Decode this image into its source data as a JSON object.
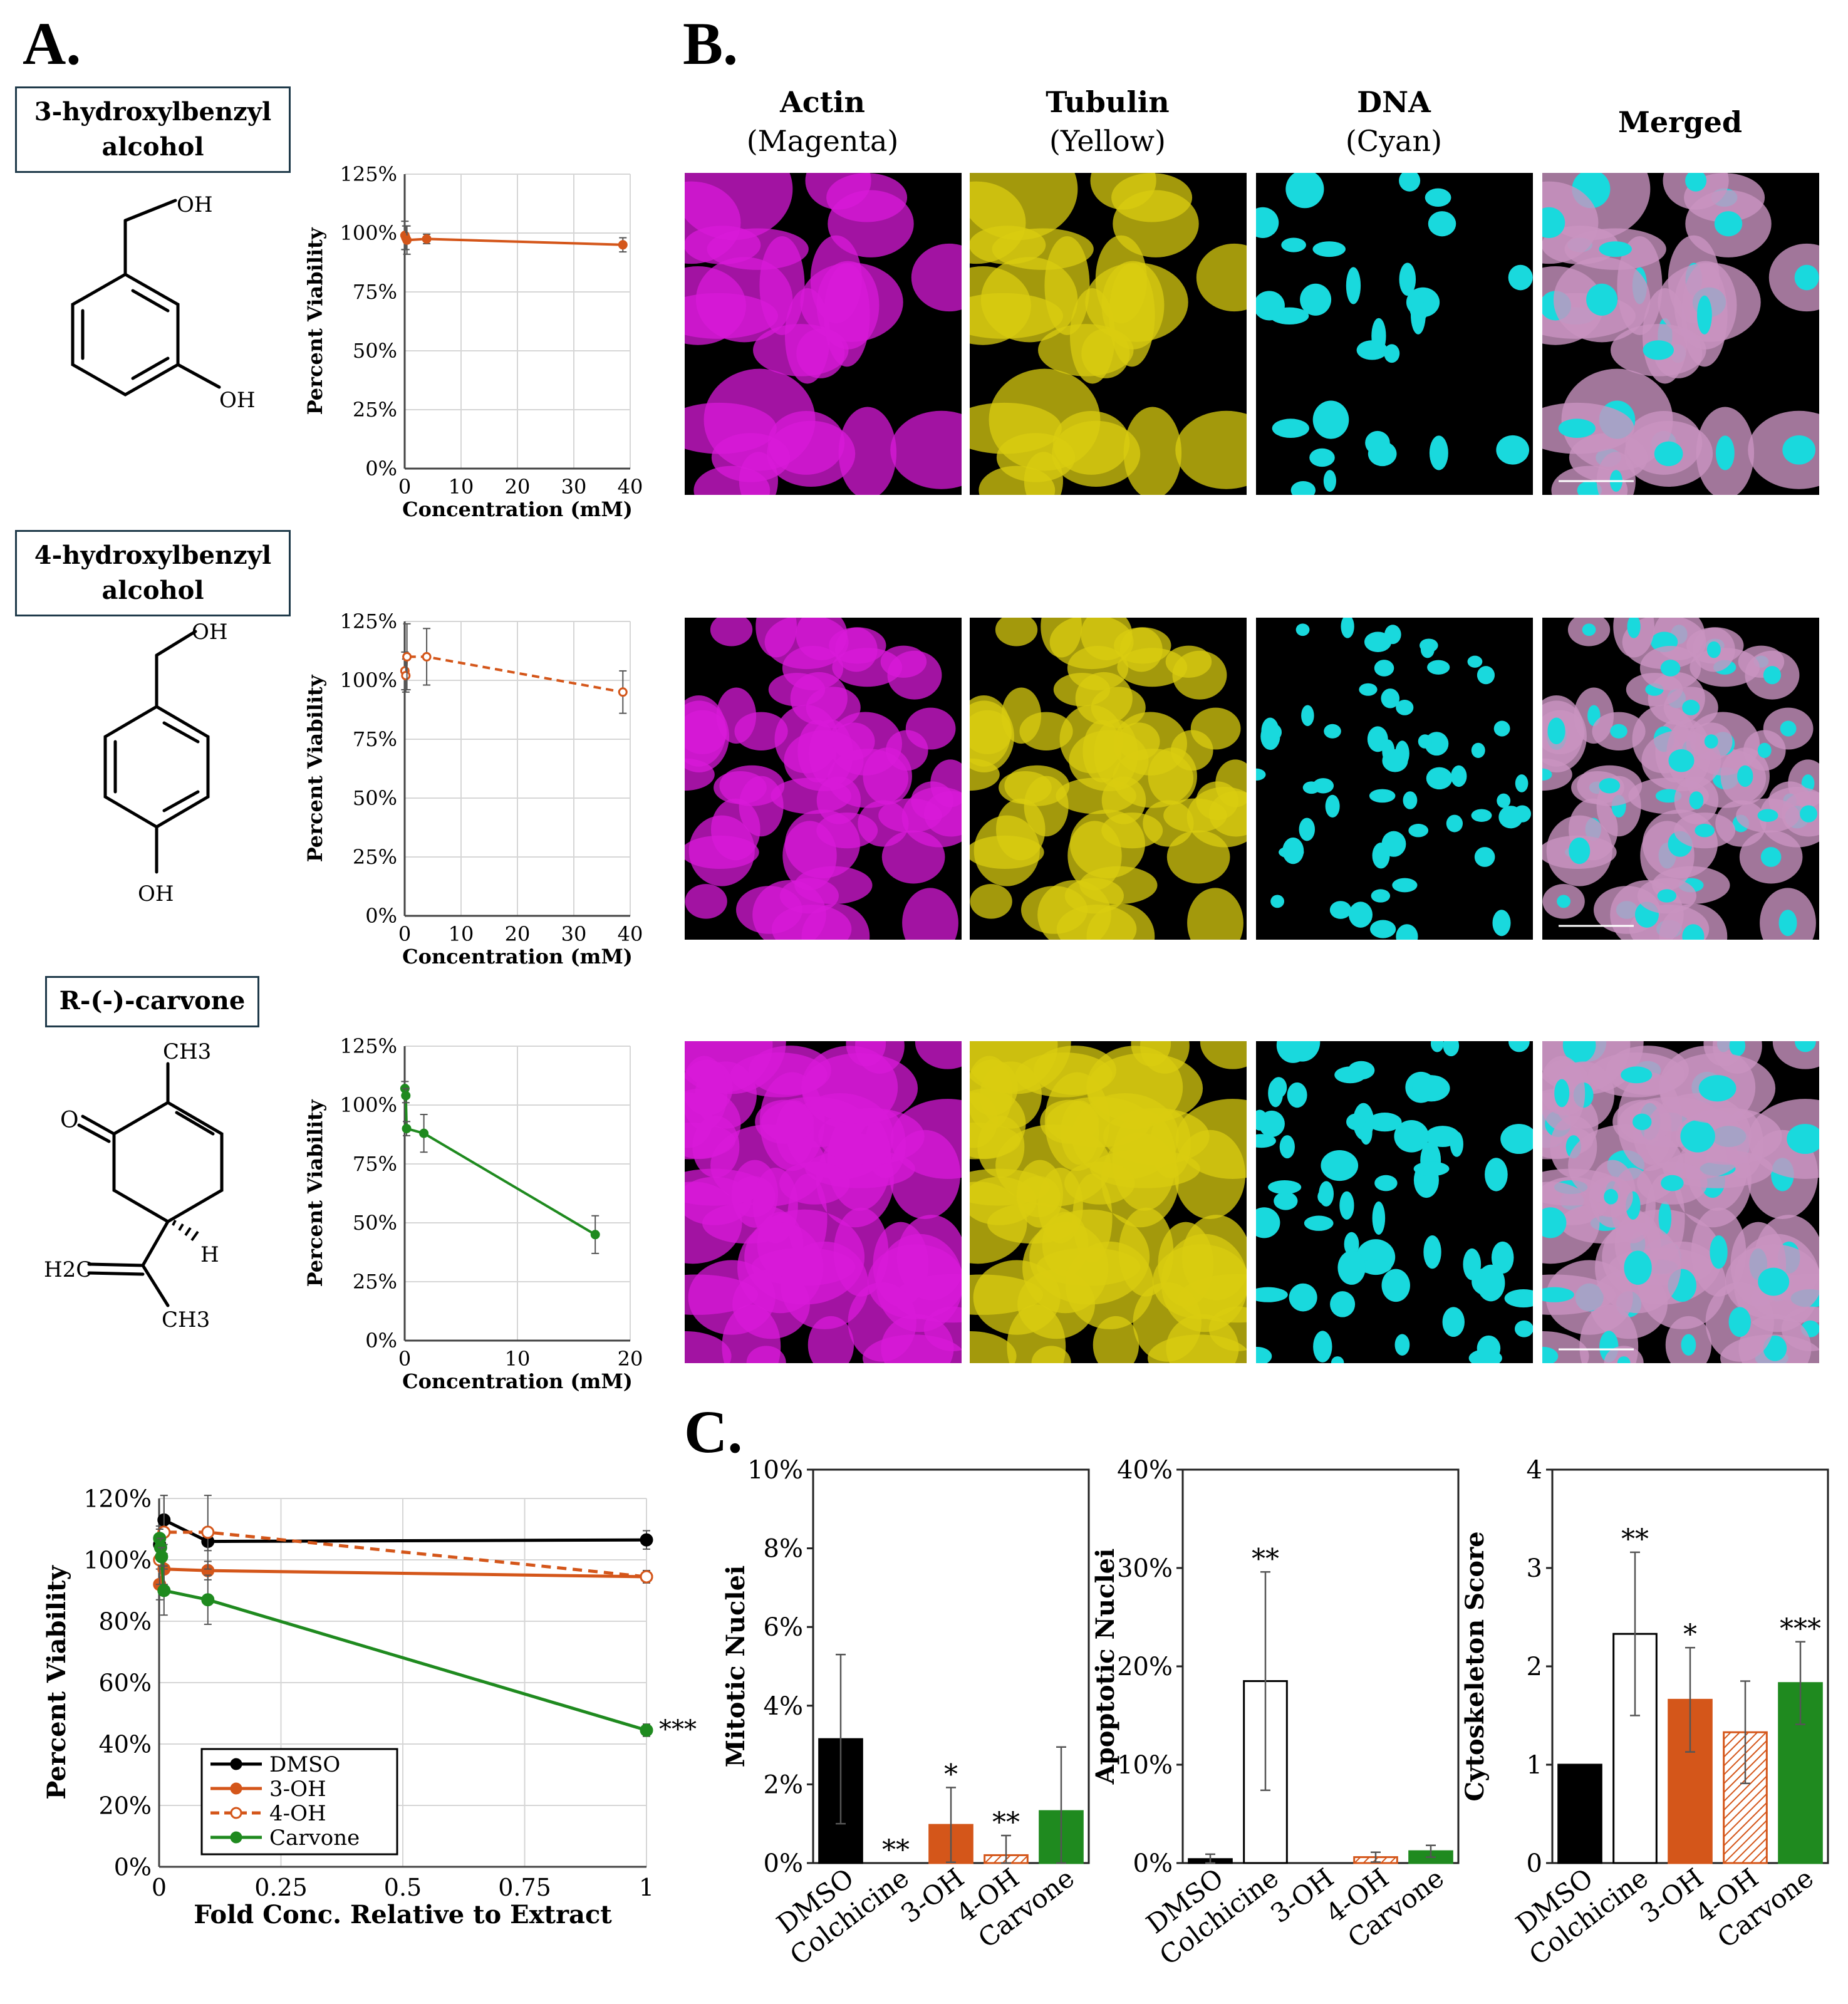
{
  "panel_labels": {
    "a": "A.",
    "b": "B.",
    "c": "C."
  },
  "compounds": [
    {
      "name_line1": "3-hydroxylbenzyl",
      "name_line2": "alcohol"
    },
    {
      "name_line1": "4-hydroxylbenzyl",
      "name_line2": "alcohol"
    },
    {
      "name_line1": "R-(-)-carvone",
      "name_line2": ""
    }
  ],
  "structure_labels": {
    "s1_oh_top": "OH",
    "s1_oh_bottom": "OH",
    "s2_oh_top": "OH",
    "s2_oh_bottom": "OH",
    "s3_ch3_top": "CH3",
    "s3_o": "O",
    "s3_h": "H",
    "s3_h2c": "H2C",
    "s3_ch3_bottom": "CH3"
  },
  "microscopy": {
    "headers": [
      {
        "line1": "Actin",
        "line2": "(Magenta)"
      },
      {
        "line1": "Tubulin",
        "line2": "(Yellow)"
      },
      {
        "line1": "DNA",
        "line2": "(Cyan)"
      },
      {
        "line1": "Merged",
        "line2": ""
      }
    ],
    "channel_colors": [
      "#d81ad8",
      "#d9cc10",
      "#19d9dd",
      "#c994c0"
    ]
  },
  "chart_data": [
    {
      "id": "viability-3oh",
      "type": "line",
      "xlabel": "Concentration (mM)",
      "ylabel": "Percent Viability",
      "xlim": [
        0,
        40
      ],
      "ylim": [
        0,
        125
      ],
      "x_ticks": [
        "0",
        "10",
        "20",
        "30",
        "40"
      ],
      "y_ticks": [
        "0%",
        "25%",
        "50%",
        "75%",
        "100%",
        "125%"
      ],
      "grid": true,
      "series": [
        {
          "x": [
            0.04,
            0.2,
            0.4,
            3.9,
            38.7
          ],
          "y": [
            99,
            98,
            97,
            97.5,
            95
          ],
          "err": [
            6,
            5,
            6,
            2,
            3
          ],
          "color": "#d4561a",
          "dashed": false,
          "open": false
        }
      ]
    },
    {
      "id": "viability-4oh",
      "type": "line",
      "xlabel": "Concentration (mM)",
      "ylabel": "Percent Viability",
      "xlim": [
        0,
        40
      ],
      "ylim": [
        0,
        125
      ],
      "x_ticks": [
        "0",
        "10",
        "20",
        "30",
        "40"
      ],
      "y_ticks": [
        "0%",
        "25%",
        "50%",
        "75%",
        "100%",
        "125%"
      ],
      "grid": true,
      "series": [
        {
          "x": [
            0.04,
            0.2,
            0.4,
            3.9,
            38.7
          ],
          "y": [
            104,
            102,
            110,
            110,
            95
          ],
          "err": [
            8,
            7,
            14,
            12,
            9
          ],
          "color": "#d4561a",
          "dashed": true,
          "open": true
        }
      ]
    },
    {
      "id": "viability-carvone",
      "type": "line",
      "xlabel": "Concentration (mM)",
      "ylabel": "Percent Viability",
      "xlim": [
        0,
        20
      ],
      "ylim": [
        0,
        125
      ],
      "x_ticks": [
        "0",
        "10",
        "20"
      ],
      "y_ticks": [
        "0%",
        "25%",
        "50%",
        "75%",
        "100%",
        "125%"
      ],
      "grid": true,
      "series": [
        {
          "x": [
            0.02,
            0.1,
            0.17,
            1.7,
            16.9
          ],
          "y": [
            107,
            104,
            90,
            88,
            45
          ],
          "err": [
            3,
            3,
            3,
            8,
            8
          ],
          "color": "#1f8a1f",
          "dashed": false,
          "open": false
        }
      ]
    },
    {
      "id": "viability-fold",
      "type": "line",
      "xlabel": "Fold Conc. Relative to Extract",
      "ylabel": "Percent Viability",
      "xlim": [
        0,
        1
      ],
      "ylim": [
        0,
        120
      ],
      "x_ticks": [
        "0",
        "0.25",
        "0.5",
        "0.75",
        "1"
      ],
      "y_ticks": [
        "0%",
        "20%",
        "40%",
        "60%",
        "80%",
        "100%",
        "120%"
      ],
      "grid": true,
      "legend_position": "bottom-left",
      "annotation": "***",
      "series": [
        {
          "name": "DMSO",
          "x": [
            0.001,
            0.01,
            0.1,
            1
          ],
          "y": [
            105,
            113,
            106,
            106.5
          ],
          "err": [
            6,
            8,
            3,
            3
          ],
          "color": "#000000",
          "dashed": false,
          "open": false
        },
        {
          "name": "3-OH",
          "x": [
            0.001,
            0.01,
            0.1,
            1
          ],
          "y": [
            92,
            97,
            96.5,
            94.5
          ],
          "err": [
            5,
            5,
            3,
            2
          ],
          "color": "#d4561a",
          "dashed": false,
          "open": false
        },
        {
          "name": "4-OH",
          "x": [
            0.001,
            0.01,
            0.1,
            1
          ],
          "y": [
            100,
            109,
            109,
            94.5
          ],
          "err": [
            8,
            12,
            12,
            2
          ],
          "color": "#d4561a",
          "dashed": true,
          "open": true
        },
        {
          "name": "Carvone",
          "x": [
            0.001,
            0.003,
            0.005,
            0.01,
            0.1,
            1
          ],
          "y": [
            107,
            104,
            101,
            90,
            87,
            44.5
          ],
          "err": [
            3,
            3,
            3,
            8,
            8,
            2
          ],
          "color": "#1f8a1f",
          "dashed": false,
          "open": false
        }
      ]
    },
    {
      "id": "mitotic-bars",
      "type": "bar",
      "ylabel": "Mitotic Nuclei",
      "categories": [
        "DMSO",
        "Colchicine",
        "3-OH",
        "4-OH",
        "Carvone"
      ],
      "values": [
        3.15,
        0,
        0.97,
        0.2,
        1.32
      ],
      "errors": [
        2.15,
        0,
        0.95,
        0.5,
        1.63
      ],
      "significance": [
        "",
        "**",
        "*",
        "**",
        ""
      ],
      "ylim": [
        0,
        10
      ],
      "y_ticks": [
        "0%",
        "2%",
        "4%",
        "6%",
        "8%",
        "10%"
      ],
      "colors": [
        "#000000",
        "#ffffff",
        "#d4561a",
        "hatch",
        "#1f8a1f"
      ]
    },
    {
      "id": "apoptotic-bars",
      "type": "bar",
      "ylabel": "Apoptotic Nuclei",
      "categories": [
        "DMSO",
        "Colchicine",
        "3-OH",
        "4-OH",
        "Carvone"
      ],
      "values": [
        0.4,
        18.5,
        0,
        0.6,
        1.2
      ],
      "errors": [
        0.5,
        11.1,
        0,
        0.5,
        0.6
      ],
      "significance": [
        "",
        "**",
        "",
        "",
        ""
      ],
      "ylim": [
        0,
        40
      ],
      "y_ticks": [
        "0%",
        "10%",
        "20%",
        "30%",
        "40%"
      ],
      "colors": [
        "#000000",
        "#ffffff",
        "#d4561a",
        "hatch",
        "#1f8a1f"
      ]
    },
    {
      "id": "cytoskeleton-bars",
      "type": "bar",
      "ylabel": "Cytoskeleton Score",
      "categories": [
        "DMSO",
        "Colchicine",
        "3-OH",
        "4-OH",
        "Carvone"
      ],
      "values": [
        1.0,
        2.33,
        1.66,
        1.33,
        1.83
      ],
      "errors": [
        0,
        0.83,
        0.53,
        0.52,
        0.42
      ],
      "significance": [
        "",
        "**",
        "*",
        "",
        "***"
      ],
      "ylim": [
        0,
        4
      ],
      "y_ticks": [
        "0",
        "1",
        "2",
        "3",
        "4"
      ],
      "colors": [
        "#000000",
        "#ffffff",
        "#d4561a",
        "hatch",
        "#1f8a1f"
      ]
    }
  ]
}
